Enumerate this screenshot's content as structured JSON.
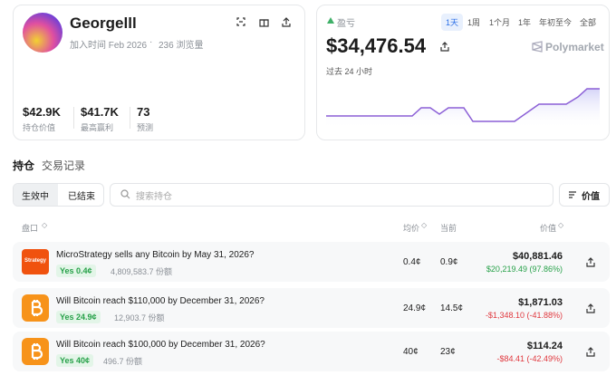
{
  "profile": {
    "name": "Georgelll",
    "joined": "加入时间 Feb 2026",
    "views": "236 浏览量",
    "stats": [
      {
        "value": "$42.9K",
        "label": "持仓价值"
      },
      {
        "value": "$41.7K",
        "label": "最高赢利"
      },
      {
        "value": "73",
        "label": "预测"
      }
    ]
  },
  "pnl": {
    "label": "盈亏",
    "value": "$34,476.54",
    "period": "过去 24 小时",
    "ranges": [
      "1天",
      "1周",
      "1个月",
      "1年",
      "年初至今",
      "全部"
    ],
    "brand": "Polymarket"
  },
  "tabs": [
    "持仓",
    "交易记录"
  ],
  "filters": [
    "生效中",
    "已结束"
  ],
  "search_placeholder": "搜索持仓",
  "sort": "价值",
  "table": {
    "headers": [
      "盘口",
      "均价",
      "当前",
      "价值"
    ],
    "rows": [
      {
        "icon_text": "Strategy",
        "title": "MicroStrategy sells any Bitcoin by May 31, 2026?",
        "outcome": "Yes 0.4¢",
        "shares": "4,809,583.7 份额",
        "avg": "0.4¢",
        "current": "0.9¢",
        "value": "$40,881.46",
        "change": "$20,219.49 (97.86%)"
      },
      {
        "title": "Will Bitcoin reach $110,000 by December 31, 2026?",
        "outcome": "Yes 24.9¢",
        "shares": "12,903.7 份额",
        "avg": "24.9¢",
        "current": "14.5¢",
        "value": "$1,871.03",
        "change": "-$1,348.10 (-41.88%)"
      },
      {
        "title": "Will Bitcoin reach $100,000 by December 31, 2026?",
        "outcome": "Yes 40¢",
        "shares": "496.7 份额",
        "avg": "40¢",
        "current": "23¢",
        "value": "$114.24",
        "change": "-$84.41 (-42.49%)"
      }
    ]
  }
}
